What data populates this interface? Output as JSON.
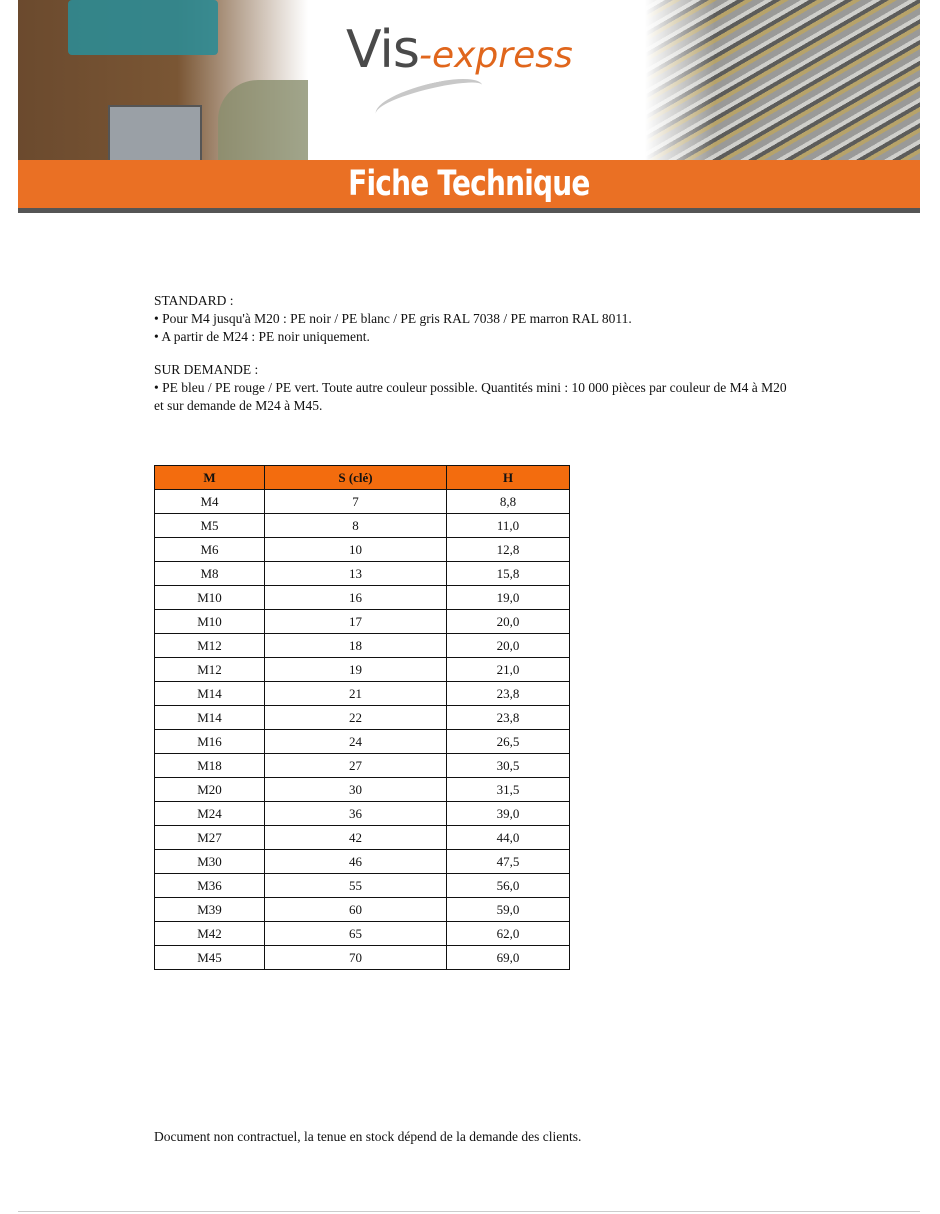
{
  "header": {
    "logo_text": "Vis-express",
    "logo_part1": "Vis",
    "logo_part2": "-express",
    "band_title": "Fiche Technique",
    "brand_color": "#ea7024"
  },
  "standard": {
    "heading": "STANDARD :",
    "lines": [
      "• Pour M4 jusqu'à M20 : PE noir / PE blanc / PE gris RAL 7038 / PE marron RAL 8011.",
      "• A partir de M24 : PE noir uniquement."
    ]
  },
  "sur_demande": {
    "heading": "SUR DEMANDE :",
    "lines": [
      "• PE bleu / PE rouge / PE vert. Toute autre couleur possible. Quantités mini : 10 000 pièces par couleur de M4 à M20 et sur demande de M24 à M45."
    ]
  },
  "table": {
    "headers": [
      "M",
      "S (clé)",
      "H"
    ],
    "header_color": "#f36c0e",
    "rows": [
      [
        "M4",
        "7",
        "8,8"
      ],
      [
        "M5",
        "8",
        "11,0"
      ],
      [
        "M6",
        "10",
        "12,8"
      ],
      [
        "M8",
        "13",
        "15,8"
      ],
      [
        "M10",
        "16",
        "19,0"
      ],
      [
        "M10",
        "17",
        "20,0"
      ],
      [
        "M12",
        "18",
        "20,0"
      ],
      [
        "M12",
        "19",
        "21,0"
      ],
      [
        "M14",
        "21",
        "23,8"
      ],
      [
        "M14",
        "22",
        "23,8"
      ],
      [
        "M16",
        "24",
        "26,5"
      ],
      [
        "M18",
        "27",
        "30,5"
      ],
      [
        "M20",
        "30",
        "31,5"
      ],
      [
        "M24",
        "36",
        "39,0"
      ],
      [
        "M27",
        "42",
        "44,0"
      ],
      [
        "M30",
        "46",
        "47,5"
      ],
      [
        "M36",
        "55",
        "56,0"
      ],
      [
        "M39",
        "60",
        "59,0"
      ],
      [
        "M42",
        "65",
        "62,0"
      ],
      [
        "M45",
        "70",
        "69,0"
      ]
    ]
  },
  "footer": {
    "note": "Document non contractuel, la tenue en stock dépend de la demande des clients."
  }
}
